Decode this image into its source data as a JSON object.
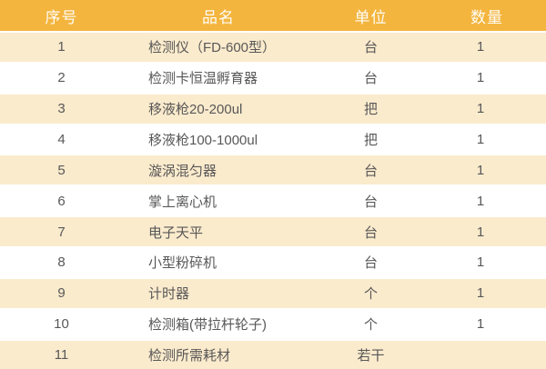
{
  "table": {
    "headers": [
      "序号",
      "品名",
      "单位",
      "数量"
    ],
    "rows": [
      {
        "no": "1",
        "name": "检测仪（FD-600型）",
        "unit": "台",
        "qty": "1"
      },
      {
        "no": "2",
        "name": "检测卡恒温孵育器",
        "unit": "台",
        "qty": "1"
      },
      {
        "no": "3",
        "name": "移液枪20-200ul",
        "unit": "把",
        "qty": "1"
      },
      {
        "no": "4",
        "name": "移液枪100-1000ul",
        "unit": "把",
        "qty": "1"
      },
      {
        "no": "5",
        "name": "漩涡混匀器",
        "unit": "台",
        "qty": "1"
      },
      {
        "no": "6",
        "name": "掌上离心机",
        "unit": "台",
        "qty": "1"
      },
      {
        "no": "7",
        "name": "电子天平",
        "unit": "台",
        "qty": "1"
      },
      {
        "no": "8",
        "name": "小型粉碎机",
        "unit": "台",
        "qty": "1"
      },
      {
        "no": "9",
        "name": "计时器",
        "unit": "个",
        "qty": "1"
      },
      {
        "no": "10",
        "name": "检测箱(带拉杆轮子)",
        "unit": "个",
        "qty": "1"
      },
      {
        "no": "11",
        "name": "检测所需耗材",
        "unit": "若干",
        "qty": ""
      }
    ]
  },
  "colors": {
    "header_bg": "#F4B53E",
    "stripe_bg": "#FAEBCD",
    "row_bg": "#FFFFFF",
    "text": "#595757",
    "header_text": "#FEFCF5"
  }
}
